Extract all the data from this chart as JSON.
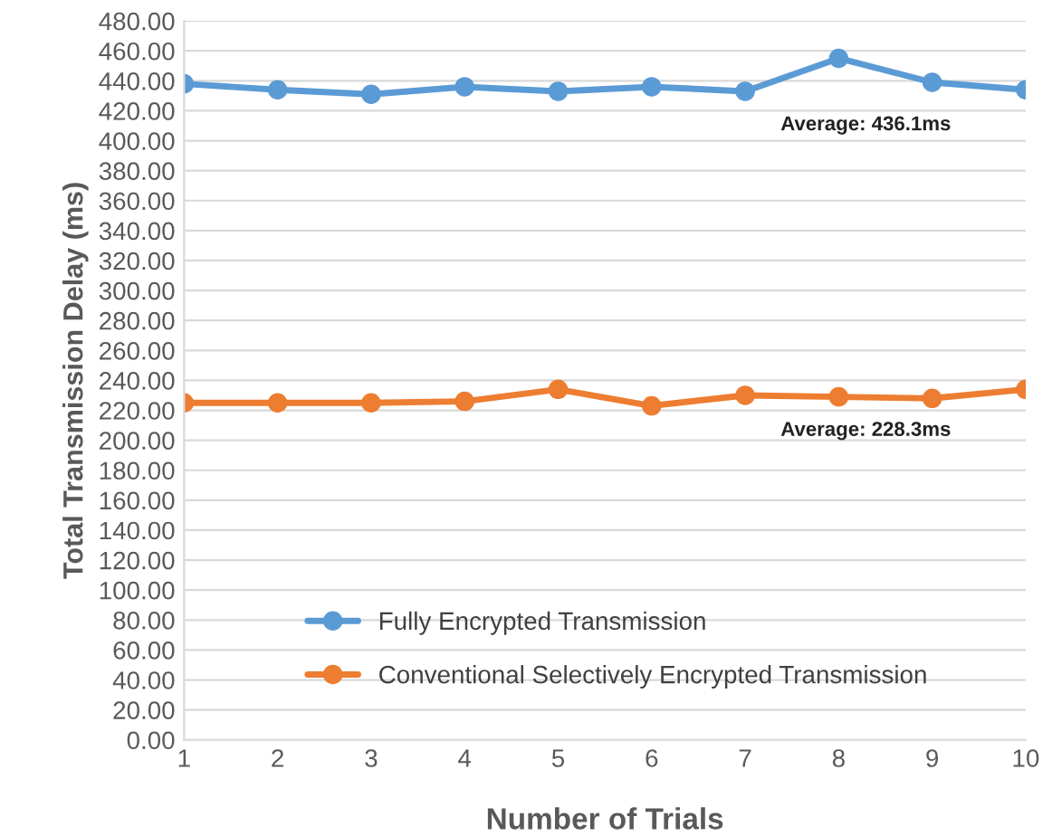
{
  "chart_data": {
    "type": "line",
    "xlabel": "Number of Trials",
    "ylabel": "Total Transmission Delay (ms)",
    "x": [
      1,
      2,
      3,
      4,
      5,
      6,
      7,
      8,
      9,
      10
    ],
    "xlim": [
      1,
      10
    ],
    "xticks": [
      1,
      2,
      3,
      4,
      5,
      6,
      7,
      8,
      9,
      10
    ],
    "ylim": [
      0,
      480
    ],
    "yticks": [
      {
        "value": 0,
        "label": "0.00"
      },
      {
        "value": 20,
        "label": "20.00"
      },
      {
        "value": 40,
        "label": "40.00"
      },
      {
        "value": 60,
        "label": "60.00"
      },
      {
        "value": 80,
        "label": "80.00"
      },
      {
        "value": 100,
        "label": "100.00"
      },
      {
        "value": 120,
        "label": "120.00"
      },
      {
        "value": 140,
        "label": "140.00"
      },
      {
        "value": 160,
        "label": "160.00"
      },
      {
        "value": 180,
        "label": "180.00"
      },
      {
        "value": 200,
        "label": "200.00"
      },
      {
        "value": 220,
        "label": "220.00"
      },
      {
        "value": 240,
        "label": "240.00"
      },
      {
        "value": 260,
        "label": "260.00"
      },
      {
        "value": 280,
        "label": "280.00"
      },
      {
        "value": 300,
        "label": "300.00"
      },
      {
        "value": 320,
        "label": "320.00"
      },
      {
        "value": 340,
        "label": "340.00"
      },
      {
        "value": 360,
        "label": "360.00"
      },
      {
        "value": 380,
        "label": "380.00"
      },
      {
        "value": 400,
        "label": "400.00"
      },
      {
        "value": 420,
        "label": "420.00"
      },
      {
        "value": 440,
        "label": "440.00"
      },
      {
        "value": 460,
        "label": "460.00"
      },
      {
        "value": 480,
        "label": "480.00"
      }
    ],
    "series": [
      {
        "name": "Fully Encrypted Transmission",
        "color": "#5b9bd5",
        "values": [
          438,
          434,
          431,
          436,
          433,
          436,
          433,
          455,
          439,
          434
        ]
      },
      {
        "name": "Conventional Selectively Encrypted Transmission",
        "color": "#ed7d31",
        "values": [
          225,
          225,
          225,
          226,
          234,
          223,
          230,
          229,
          228,
          234
        ]
      }
    ],
    "annotations": [
      "Average: 436.1ms",
      "Average: 228.3ms"
    ],
    "grid": "y",
    "legend": "bottom left",
    "marker": "circle",
    "line_style": "solid"
  }
}
